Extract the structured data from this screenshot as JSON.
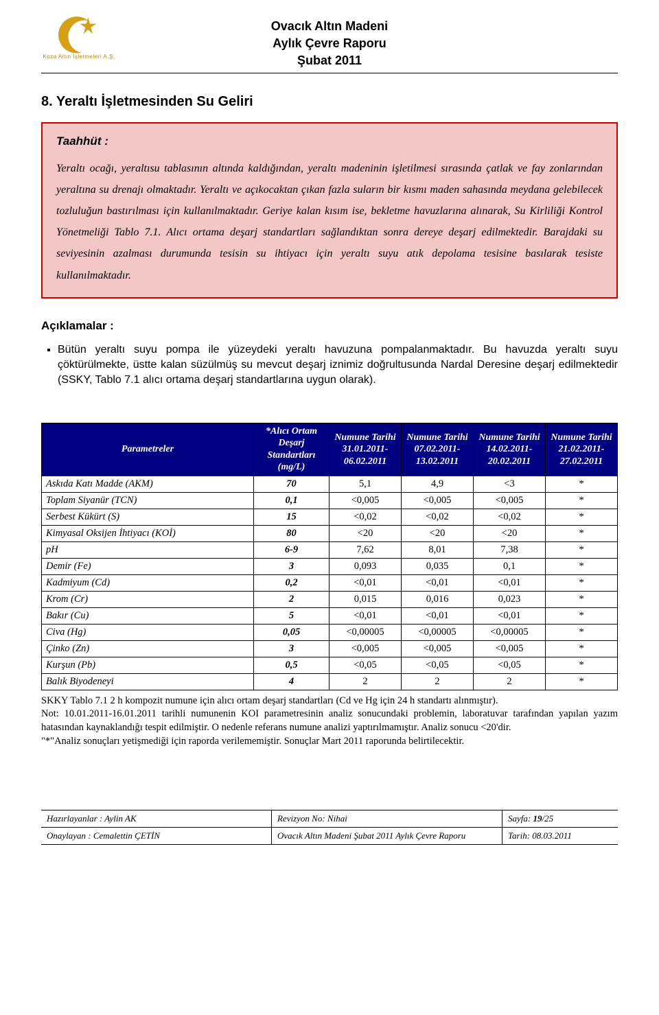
{
  "header": {
    "logo_caption": "Koza Altın İşletmeleri A.Ş.",
    "title_line1": "Ovacık Altın Madeni",
    "title_line2": "Aylık Çevre Raporu",
    "title_line3": "Şubat 2011"
  },
  "section_title": "8. Yeraltı İşletmesinden Su Geliri",
  "taahhut": {
    "heading": "Taahhüt :",
    "body": "Yeraltı ocağı, yeraltısu tablasının altında kaldığından, yeraltı madeninin işletilmesi sırasında çatlak ve fay zonlarından yeraltına su drenajı olmaktadır. Yeraltı ve açıkocaktan çıkan fazla suların bir kısmı maden sahasında meydana gelebilecek tozluluğun bastırılması için kullanılmaktadır. Geriye kalan kısım ise, bekletme havuzlarına alınarak, Su Kirliliği Kontrol Yönetmeliği Tablo 7.1. Alıcı ortama deşarj standartları sağlandıktan sonra dereye deşarj edilmektedir. Barajdaki su seviyesinin azalması durumunda tesisin su ihtiyacı için yeraltı suyu atık depolama tesisine basılarak tesiste kullanılmaktadır."
  },
  "aciklama": {
    "heading": "Açıklamalar :",
    "item": "Bütün yeraltı suyu pompa ile yüzeydeki yeraltı havuzuna pompalanmaktadır. Bu havuzda yeraltı suyu çöktürülmekte, üstte kalan süzülmüş su mevcut deşarj iznimiz doğrultusunda Nardal Deresine deşarj edilmektedir (SSKY, Tablo 7.1 alıcı ortama deşarj standartlarına uygun olarak)."
  },
  "table": {
    "header_bg": "#000080",
    "headers": [
      "Parametreler",
      "*Alıcı Ortam Deşarj Standartları (mg/L)",
      "Numune Tarihi 31.01.2011-06.02.2011",
      "Numune Tarihi 07.02.2011-13.02.2011",
      "Numune Tarihi 14.02.2011-20.02.2011",
      "Numune Tarihi 21.02.2011-27.02.2011"
    ],
    "rows": [
      {
        "p": "Askıda Katı Madde (AKM)",
        "s": "70",
        "v": [
          "5,1",
          "4,9",
          "<3",
          "*"
        ]
      },
      {
        "p": "Toplam Siyanür (TCN)",
        "s": "0,1",
        "v": [
          "<0,005",
          "<0,005",
          "<0,005",
          "*"
        ]
      },
      {
        "p": "Serbest Kükürt (S)",
        "s": "15",
        "v": [
          "<0,02",
          "<0,02",
          "<0,02",
          "*"
        ]
      },
      {
        "p": "Kimyasal Oksijen İhtiyacı (KOİ)",
        "s": "80",
        "v": [
          "<20",
          "<20",
          "<20",
          "*"
        ]
      },
      {
        "p": "pH",
        "s": "6-9",
        "v": [
          "7,62",
          "8,01",
          "7,38",
          "*"
        ]
      },
      {
        "p": "Demir (Fe)",
        "s": "3",
        "v": [
          "0,093",
          "0,035",
          "0,1",
          "*"
        ]
      },
      {
        "p": "Kadmiyum (Cd)",
        "s": "0,2",
        "v": [
          "<0,01",
          "<0,01",
          "<0,01",
          "*"
        ]
      },
      {
        "p": "Krom (Cr)",
        "s": "2",
        "v": [
          "0,015",
          "0,016",
          "0,023",
          "*"
        ]
      },
      {
        "p": "Bakır (Cu)",
        "s": "5",
        "v": [
          "<0,01",
          "<0,01",
          "<0,01",
          "*"
        ]
      },
      {
        "p": "Civa (Hg)",
        "s": "0,05",
        "v": [
          "<0,00005",
          "<0,00005",
          "<0,00005",
          "*"
        ]
      },
      {
        "p": "Çinko (Zn)",
        "s": "3",
        "v": [
          "<0,005",
          "<0,005",
          "<0,005",
          "*"
        ]
      },
      {
        "p": "Kurşun (Pb)",
        "s": "0,5",
        "v": [
          "<0,05",
          "<0,05",
          "<0,05",
          "*"
        ]
      },
      {
        "p": "Balık Biyodeneyi",
        "s": "4",
        "v": [
          "2",
          "2",
          "2",
          "*"
        ]
      }
    ]
  },
  "notes": {
    "l1": "SKKY Tablo 7.1 2 h kompozit numune için alıcı ortam deşarj standartları (Cd ve Hg için 24 h standartı alınmıştır).",
    "l2": "Not: 10.01.2011-16.01.2011 tarihli numunenin KOI parametresinin analiz sonucundaki problemin, laboratuvar tarafından yapılan yazım hatasından kaynaklandığı tespit edilmiştir. O nedenle  referans numune analizi yaptırılmamıştır.  Analiz sonucu <20'dir.",
    "l3": "\"*\"Analiz sonuçları yetişmediği için raporda verilememiştir. Sonuçlar Mart 2011 raporunda belirtilecektir."
  },
  "footer": {
    "r1c1": "Hazırlayanlar : Aylin AK",
    "r1c2": "Revizyon No: Nihai",
    "r1c3": "Sayfa: 19/25",
    "r2c1": "Onaylayan : Cemalettin ÇETİN",
    "r2c2": "Ovacık Altın Madeni Şubat 2011 Aylık Çevre Raporu",
    "r2c3": "Tarih: 08.03.2011"
  }
}
